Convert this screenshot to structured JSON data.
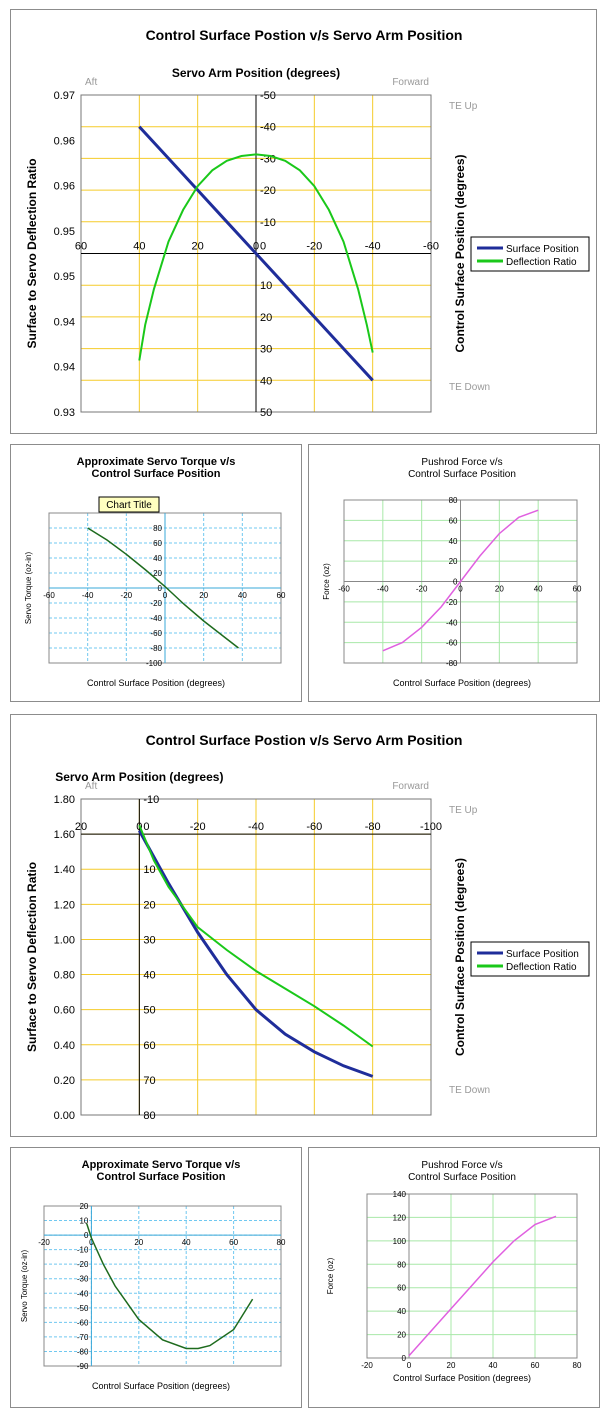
{
  "chart_data": [
    {
      "type": "line",
      "title": "Control Surface Postion v/s Servo Arm Position",
      "xlabel": "Servo Arm Position (degrees)",
      "ylabel": "Surface to Servo Deflection Ratio",
      "y2label": "Control Surface Position (degrees)",
      "corner_labels": {
        "top_left": "Aft",
        "top_right": "Forward",
        "right_top": "TE Up",
        "right_bottom": "TE Down"
      },
      "xlim": [
        60,
        -60
      ],
      "xticks": [
        60,
        40,
        20,
        0,
        -20,
        -40,
        -60
      ],
      "ylim": [
        0.93,
        0.97
      ],
      "yticks": [
        "0.93",
        "0.94",
        "0.94",
        "0.95",
        "0.95",
        "0.96",
        "0.96",
        "0.97"
      ],
      "y2lim": [
        50,
        -50
      ],
      "y2ticks": [
        50,
        40,
        30,
        20,
        10,
        0,
        -10,
        -20,
        -30,
        -40,
        -50
      ],
      "legend": "right",
      "series": [
        {
          "name": "Surface Position",
          "axis": "y2",
          "color": "#1f2d9a",
          "x": [
            40,
            30,
            20,
            10,
            0,
            -10,
            -20,
            -30,
            -40
          ],
          "y": [
            -40,
            -30,
            -20,
            -10,
            0,
            10,
            20,
            30,
            40
          ]
        },
        {
          "name": "Deflection Ratio",
          "axis": "y",
          "color": "#1ac81a",
          "x": [
            40,
            38,
            35,
            30,
            25,
            20,
            15,
            10,
            5,
            0,
            -5,
            -10,
            -15,
            -20,
            -25,
            -30,
            -35,
            -38,
            -40
          ],
          "y": [
            0.9365,
            0.941,
            0.9455,
            0.9515,
            0.9555,
            0.9585,
            0.9605,
            0.9617,
            0.9623,
            0.9625,
            0.9623,
            0.9617,
            0.9605,
            0.9585,
            0.9555,
            0.9515,
            0.9455,
            0.941,
            0.9375
          ]
        }
      ]
    },
    {
      "type": "line",
      "title": "Approximate Servo Torque v/s\nControl Surface Position",
      "tag": "Chart Title",
      "xlabel": "Control Surface Position (degrees)",
      "ylabel": "Servo Torque (oz-in)",
      "xlim": [
        -60,
        60
      ],
      "xticks": [
        -60,
        -40,
        -20,
        0,
        20,
        40,
        60
      ],
      "ylim": [
        -100,
        100
      ],
      "yticks": [
        -100,
        -80,
        -60,
        -40,
        -20,
        0,
        20,
        40,
        60,
        80
      ],
      "series": [
        {
          "color": "#1e6b1e",
          "x": [
            -40,
            -30,
            -20,
            -10,
            0,
            10,
            20,
            30,
            38
          ],
          "y": [
            80,
            64,
            45,
            24,
            2,
            -22,
            -44,
            -64,
            -80
          ]
        }
      ]
    },
    {
      "type": "line",
      "title": "Pushrod Force v/s\nControl Surface Position",
      "xlabel": "Control  Surface Position (degrees)",
      "ylabel": "Force (oz)",
      "xlim": [
        -60,
        60
      ],
      "xticks": [
        -60,
        -40,
        -20,
        0,
        20,
        40,
        60
      ],
      "ylim": [
        -80,
        80
      ],
      "yticks": [
        -80,
        -60,
        -40,
        -20,
        0,
        20,
        40,
        60,
        80
      ],
      "series": [
        {
          "color": "#e060e0",
          "x": [
            -40,
            -30,
            -20,
            -10,
            0,
            10,
            20,
            30,
            40
          ],
          "y": [
            -68,
            -60,
            -45,
            -25,
            0,
            25,
            47,
            63,
            70
          ]
        }
      ]
    },
    {
      "type": "line",
      "title": "Control Surface Postion v/s Servo Arm Position",
      "xlabel": "Servo Arm Position (degrees)",
      "ylabel": "Surface to Servo Deflection Ratio",
      "y2label": "Control Surface Position (degrees)",
      "corner_labels": {
        "top_left": "Aft",
        "top_right": "Forward",
        "right_top": "TE Up",
        "right_bottom": "TE Down"
      },
      "xlim": [
        20,
        -100
      ],
      "xticks": [
        20,
        0,
        -20,
        -40,
        -60,
        -80,
        -100
      ],
      "ylim": [
        0,
        1.8
      ],
      "yticks": [
        "0.00",
        "0.20",
        "0.40",
        "0.60",
        "0.80",
        "1.00",
        "1.20",
        "1.40",
        "1.60",
        "1.80"
      ],
      "y2lim": [
        80,
        -10
      ],
      "y2ticks": [
        80,
        70,
        60,
        50,
        40,
        30,
        20,
        10,
        0,
        -10
      ],
      "legend": "right",
      "series": [
        {
          "name": "Surface Position",
          "axis": "y2",
          "color": "#1f2d9a",
          "x": [
            0,
            -10,
            -20,
            -30,
            -40,
            -50,
            -60,
            -70,
            -80
          ],
          "y": [
            -1,
            14,
            28,
            40,
            50,
            57,
            62,
            66,
            69
          ]
        },
        {
          "name": "Deflection Ratio",
          "axis": "y",
          "color": "#1ac81a",
          "x": [
            0,
            -5,
            -10,
            -20,
            -30,
            -40,
            -50,
            -60,
            -70,
            -80
          ],
          "y": [
            1.65,
            1.45,
            1.3,
            1.07,
            0.94,
            0.82,
            0.72,
            0.62,
            0.51,
            0.39
          ]
        }
      ]
    },
    {
      "type": "line",
      "title": "Approximate Servo Torque v/s\nControl Surface Position",
      "xlabel": "Control  Surface Position (degrees)",
      "ylabel": "Servo Torque (oz-in)",
      "xlim": [
        -20,
        80
      ],
      "xticks": [
        -20,
        0,
        20,
        40,
        60,
        80
      ],
      "ylim": [
        -90,
        20
      ],
      "yticks": [
        -90,
        -80,
        -70,
        -60,
        -50,
        -40,
        -30,
        -20,
        -10,
        0,
        10,
        20
      ],
      "series": [
        {
          "color": "#1e6b1e",
          "x": [
            -2,
            0,
            5,
            10,
            20,
            30,
            40,
            45,
            50,
            60,
            68
          ],
          "y": [
            8,
            -2,
            -20,
            -35,
            -58,
            -72,
            -78,
            -78,
            -76,
            -65,
            -44
          ]
        }
      ]
    },
    {
      "type": "line",
      "title": "Pushrod Force v/s\nControl Surface Position",
      "xlabel": "Control  Surface Position (degrees)",
      "ylabel": "Force (oz)",
      "xlim": [
        -20,
        80
      ],
      "xticks": [
        -20,
        0,
        20,
        40,
        60,
        80
      ],
      "ylim": [
        0,
        140
      ],
      "yticks": [
        0,
        20,
        40,
        60,
        80,
        100,
        120,
        140
      ],
      "series": [
        {
          "color": "#e060e0",
          "x": [
            0,
            10,
            20,
            30,
            40,
            50,
            60,
            70
          ],
          "y": [
            2,
            22,
            42,
            62,
            82,
            100,
            114,
            121
          ]
        }
      ]
    }
  ]
}
